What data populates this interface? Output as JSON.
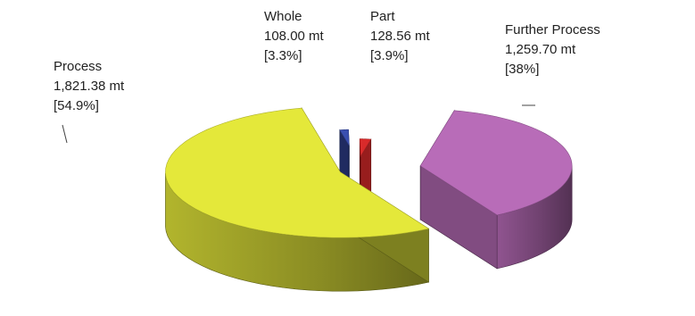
{
  "chart_data": {
    "type": "pie",
    "title": "",
    "unit": "mt",
    "style": "3d-exploded",
    "slices": [
      {
        "name": "Whole",
        "value": 108.0,
        "value_label": "108.00 mt",
        "percent_label": "[3.3%]",
        "color": "#3a4fb0"
      },
      {
        "name": "Part",
        "value": 128.56,
        "value_label": "128.56 mt",
        "percent_label": "[3.9%]",
        "color": "#d92a2a"
      },
      {
        "name": "Further Process",
        "value": 1259.7,
        "value_label": "1,259.70 mt",
        "percent_label": "[38%]",
        "color": "#b86cb8"
      },
      {
        "name": "Process",
        "value": 1821.38,
        "value_label": "1,821.38 mt",
        "percent_label": "[54.9%]",
        "color": "#e4e83a"
      }
    ]
  }
}
